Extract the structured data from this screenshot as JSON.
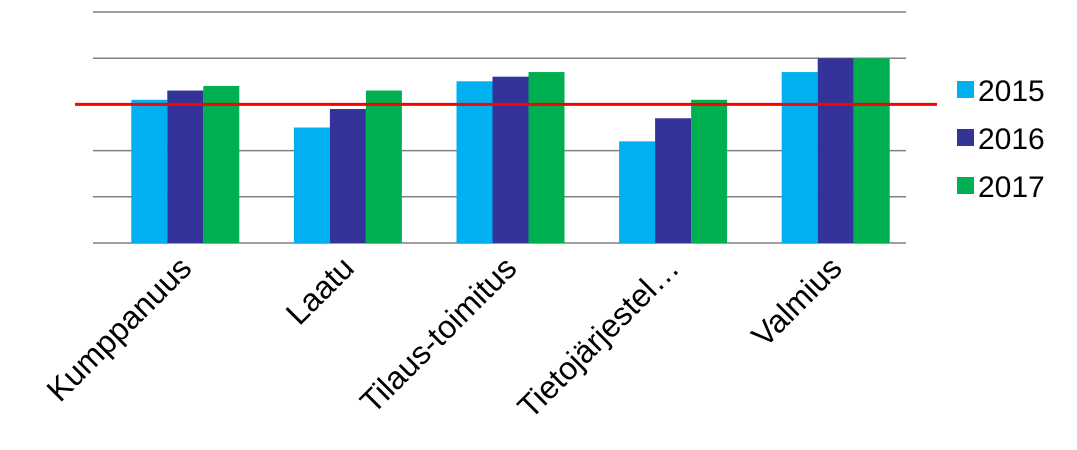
{
  "chart_data": {
    "type": "bar",
    "categories": [
      "Kumppanuus",
      "Laatu",
      "Tilaus-toimitus",
      "Tietojärjestel…",
      "Valmius"
    ],
    "series": [
      {
        "name": "2015",
        "color": "#00B0F0",
        "values": [
          3.1,
          2.5,
          3.5,
          2.2,
          3.7
        ]
      },
      {
        "name": "2016",
        "color": "#333399",
        "values": [
          3.3,
          2.9,
          3.6,
          2.7,
          4.0
        ]
      },
      {
        "name": "2017",
        "color": "#00B050",
        "values": [
          3.4,
          3.3,
          3.7,
          3.1,
          4.0
        ]
      }
    ],
    "reference_line": {
      "value": 3.0,
      "color": "#FF0000"
    },
    "ylim": [
      0,
      5
    ],
    "y_gridlines": [
      0,
      1,
      2,
      3,
      4,
      5
    ],
    "gridline_color": "#808080",
    "grid": true,
    "legend_placement": "right",
    "title": "",
    "xlabel": "",
    "ylabel": ""
  }
}
